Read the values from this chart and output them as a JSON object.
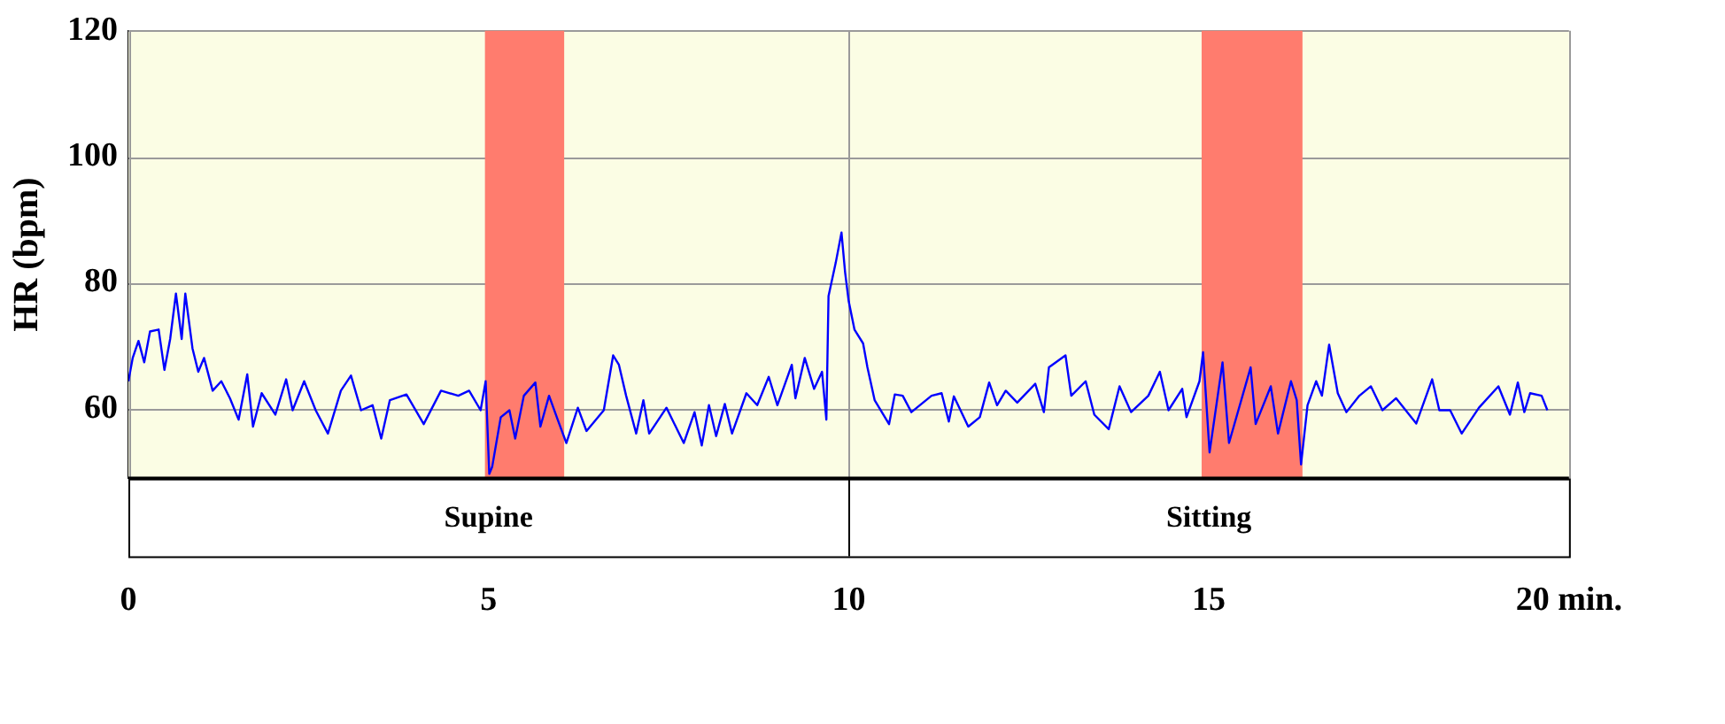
{
  "chart_data": {
    "type": "line",
    "ylabel": "HR (bpm)",
    "xlim": [
      0,
      20
    ],
    "xticks": [
      0,
      5,
      10,
      15,
      {
        "value": 20,
        "label": "20 min."
      }
    ],
    "ylim": [
      49,
      120
    ],
    "yticks": [
      60,
      80,
      100,
      120
    ],
    "grid": true,
    "legend": false,
    "marker": "none",
    "line_style": "solid",
    "bands": [
      {
        "axis": "x",
        "from": 4.95,
        "to": 6.05,
        "color": "#ff7c6e"
      },
      {
        "axis": "x",
        "from": 14.9,
        "to": 16.3,
        "color": "#ff7c6e"
      }
    ],
    "annotations": [
      "Supine",
      "Sitting"
    ],
    "series": [
      {
        "color": "#0000ff",
        "x": [
          0,
          0.06,
          0.14,
          0.22,
          0.3,
          0.42,
          0.5,
          0.58,
          0.66,
          0.74,
          0.79,
          0.89,
          0.97,
          1.05,
          1.17,
          1.29,
          1.41,
          1.53,
          1.65,
          1.73,
          1.85,
          2.04,
          2.19,
          2.28,
          2.44,
          2.6,
          2.77,
          2.95,
          3.09,
          3.23,
          3.39,
          3.51,
          3.63,
          3.86,
          4.1,
          4.34,
          4.58,
          4.73,
          4.89,
          4.96,
          5.01,
          5.05,
          5.17,
          5.29,
          5.37,
          5.49,
          5.65,
          5.72,
          5.84,
          5.96,
          6.08,
          6.24,
          6.36,
          6.6,
          6.73,
          6.81,
          6.91,
          7.05,
          7.15,
          7.23,
          7.47,
          7.71,
          7.86,
          7.96,
          8.06,
          8.16,
          8.28,
          8.38,
          8.58,
          8.73,
          8.89,
          9.01,
          9.21,
          9.26,
          9.39,
          9.52,
          9.63,
          9.69,
          9.72,
          9.82,
          9.9,
          9.95,
          10,
          10.08,
          10.2,
          10.26,
          10.36,
          10.56,
          10.64,
          10.75,
          10.87,
          11.15,
          11.29,
          11.39,
          11.46,
          11.66,
          11.82,
          11.95,
          12.06,
          12.18,
          12.34,
          12.59,
          12.71,
          12.78,
          13.01,
          13.09,
          13.29,
          13.41,
          13.61,
          13.76,
          13.92,
          14.16,
          14.32,
          14.44,
          14.63,
          14.69,
          14.87,
          14.92,
          15.01,
          15.19,
          15.28,
          15.58,
          15.65,
          15.86,
          15.96,
          16.14,
          16.22,
          16.28,
          16.37,
          16.49,
          16.57,
          16.67,
          16.79,
          16.91,
          17.09,
          17.25,
          17.41,
          17.6,
          17.88,
          18.1,
          18.2,
          18.35,
          18.51,
          18.75,
          19.02,
          19.18,
          19.29,
          19.38,
          19.46,
          19.62,
          19.7
        ],
        "values": [
          64.4,
          68.1,
          70.8,
          67.4,
          72.3,
          72.6,
          66.2,
          71.1,
          78.3,
          71.1,
          78.3,
          69.6,
          65.9,
          68.1,
          62.9,
          64.4,
          61.7,
          58.3,
          65.5,
          57.2,
          62.5,
          59.1,
          64.7,
          59.8,
          64.4,
          59.8,
          56.1,
          62.9,
          65.3,
          59.8,
          60.6,
          55.3,
          61.4,
          62.3,
          57.6,
          62.9,
          62.1,
          62.9,
          59.8,
          64.4,
          49.7,
          50.8,
          58.7,
          59.8,
          55.3,
          62.1,
          64.2,
          57.2,
          62.1,
          58.3,
          54.6,
          60.2,
          56.5,
          59.8,
          68.5,
          67,
          62.1,
          56.1,
          61.4,
          56.1,
          60.2,
          54.6,
          59.5,
          54.2,
          60.6,
          55.7,
          60.8,
          56.1,
          62.5,
          60.6,
          65.1,
          60.6,
          67,
          61.7,
          68.1,
          63.2,
          65.9,
          58.3,
          77.9,
          83.2,
          88,
          81.7,
          77.1,
          72.6,
          70.4,
          66.6,
          61.4,
          57.6,
          62.3,
          62.1,
          59.5,
          62.1,
          62.5,
          58,
          62,
          57.2,
          58.7,
          64.2,
          60.6,
          62.9,
          61,
          64,
          59.5,
          66.6,
          68.5,
          62.1,
          64.4,
          59.1,
          56.8,
          63.6,
          59.5,
          62.1,
          65.9,
          59.8,
          63.2,
          58.7,
          64.4,
          69,
          53.1,
          67.4,
          54.6,
          66.6,
          57.6,
          63.6,
          56.1,
          64.4,
          61.4,
          51.2,
          60.6,
          64.4,
          62.1,
          70.2,
          62.5,
          59.5,
          62.1,
          63.6,
          59.8,
          61.7,
          57.7,
          64.7,
          59.8,
          59.8,
          56.1,
          60.2,
          63.6,
          59.1,
          64.2,
          59.5,
          62.5,
          62.1,
          59.8
        ]
      }
    ]
  }
}
